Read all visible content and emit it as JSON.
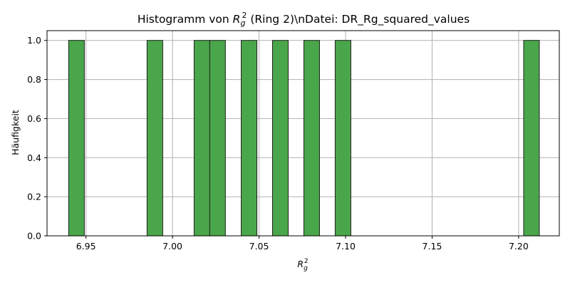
{
  "chart_data": {
    "type": "bar",
    "title": {
      "prefix": "Histogramm von ",
      "var_main": "R",
      "var_sub": "g",
      "var_sup": "2",
      "suffix": " (Ring 2)\\nDatei: DR_Rg_squared_values"
    },
    "xlabel": {
      "main": "R",
      "sub": "g",
      "sup": "2"
    },
    "ylabel": "Häufigkeit",
    "xlim": [
      6.9275,
      7.2235
    ],
    "ylim": [
      0,
      1.05
    ],
    "xticks": [
      6.95,
      7.0,
      7.05,
      7.1,
      7.15,
      7.2
    ],
    "xtick_labels": [
      "6.95",
      "7.00",
      "7.05",
      "7.10",
      "7.15",
      "7.20"
    ],
    "yticks": [
      0.0,
      0.2,
      0.4,
      0.6,
      0.8,
      1.0
    ],
    "ytick_labels": [
      "0.0",
      "0.2",
      "0.4",
      "0.6",
      "0.8",
      "1.0"
    ],
    "bin_width": 0.00906,
    "bins": [
      {
        "start": 6.94,
        "count": 1
      },
      {
        "start": 6.9853,
        "count": 1
      },
      {
        "start": 7.0125,
        "count": 1
      },
      {
        "start": 7.0215,
        "count": 1
      },
      {
        "start": 7.0397,
        "count": 1
      },
      {
        "start": 7.0578,
        "count": 1
      },
      {
        "start": 7.0759,
        "count": 1
      },
      {
        "start": 7.094,
        "count": 1
      },
      {
        "start": 7.2029,
        "count": 1
      }
    ],
    "grid": true,
    "colors": {
      "bar": "#4aa64a",
      "bar_edge": "#1f1f1f"
    }
  }
}
